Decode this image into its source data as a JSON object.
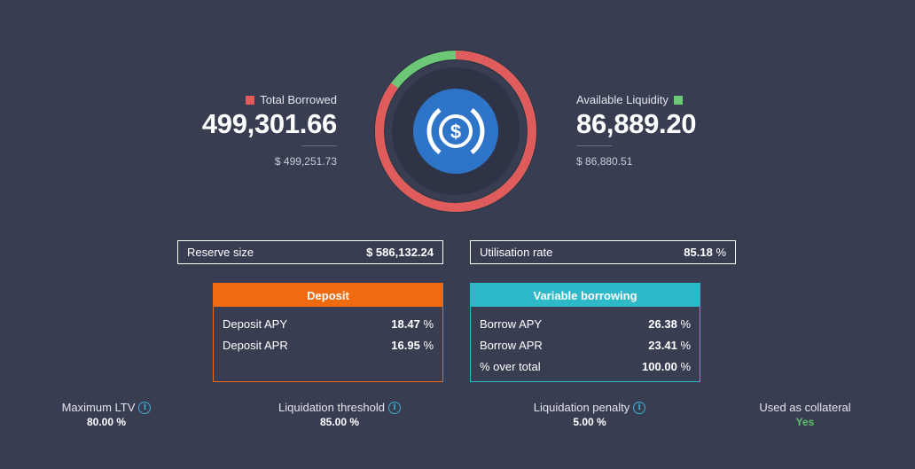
{
  "borrowed": {
    "label": "Total Borrowed",
    "value": "499,301.66",
    "usd": "$ 499,251.73",
    "color": "#e05c5c"
  },
  "liquidity": {
    "label": "Available Liquidity",
    "value": "86,889.20",
    "usd": "$ 86,880.51",
    "color": "#6cc777"
  },
  "donut": {
    "utilisation_fraction": 0.8518,
    "borrowed_color": "#e05c5c",
    "liquidity_color": "#6cc777",
    "token_icon": "usdc-icon",
    "token_color": "#2e74c9"
  },
  "reserve": {
    "label": "Reserve size",
    "value": "$ 586,132.24"
  },
  "utilisation": {
    "label": "Utilisation rate",
    "value": "85.18",
    "unit": "%"
  },
  "deposit": {
    "title": "Deposit",
    "accent": "#f06a0f",
    "rows": [
      {
        "label": "Deposit APY",
        "value": "18.47",
        "unit": "%"
      },
      {
        "label": "Deposit APR",
        "value": "16.95",
        "unit": "%"
      }
    ]
  },
  "variable": {
    "title": "Variable borrowing",
    "accent": "#2eb9c9",
    "rows": [
      {
        "label": "Borrow APY",
        "value": "26.38",
        "unit": "%"
      },
      {
        "label": "Borrow APR",
        "value": "23.41",
        "unit": "%"
      },
      {
        "label": "% over total",
        "value": "100.00",
        "unit": "%"
      }
    ]
  },
  "stats": [
    {
      "label": "Maximum LTV",
      "value": "80.00 %",
      "info": true
    },
    {
      "label": "Liquidation threshold",
      "value": "85.00 %",
      "info": true
    },
    {
      "label": "Liquidation penalty",
      "value": "5.00 %",
      "info": true
    },
    {
      "label": "Used as collateral",
      "value": "Yes",
      "info": false,
      "value_color": "#5fc26b"
    }
  ]
}
